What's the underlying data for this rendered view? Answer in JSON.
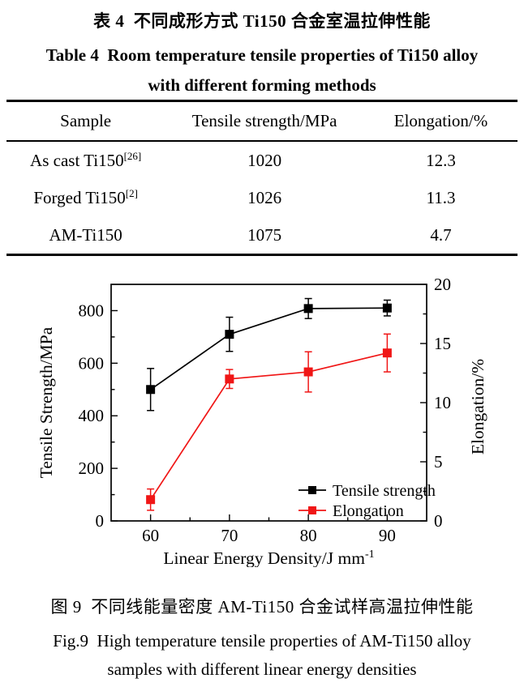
{
  "titles": {
    "table_zh": "表 4  不同成形方式 Ti150 合金室温拉伸性能",
    "table_en_line1": "Table 4  Room temperature tensile properties of Ti150 alloy",
    "table_en_line2": "with different forming methods"
  },
  "table": {
    "headers": [
      "Sample",
      "Tensile strength/MPa",
      "Elongation/%"
    ],
    "rows": [
      {
        "sample": "As cast Ti150",
        "sample_sup": "[26]",
        "tensile_strength": "1020",
        "elongation": "12.3"
      },
      {
        "sample": "Forged Ti150",
        "sample_sup": "[2]",
        "tensile_strength": "1026",
        "elongation": "11.3"
      },
      {
        "sample": "AM-Ti150",
        "sample_sup": "",
        "tensile_strength": "1075",
        "elongation": "4.7"
      }
    ]
  },
  "figure_captions": {
    "caption_zh": "图 9  不同线能量密度 AM-Ti150 合金试样高温拉伸性能",
    "caption_en_line1": "Fig.9  High temperature tensile properties of AM-Ti150 alloy",
    "caption_en_line2": "samples with different linear energy densities"
  },
  "chart_data": {
    "type": "line",
    "x": [
      60,
      70,
      80,
      90
    ],
    "xlabel": "Linear Energy Density/J mm",
    "xlabel_sup": "-1",
    "xlim": [
      55,
      95
    ],
    "x_ticks": [
      60,
      70,
      80,
      90
    ],
    "x_minor_ticks": [
      65,
      75,
      85
    ],
    "left_axis": {
      "label": "Tensile Strength/MPa",
      "lim": [
        0,
        900
      ],
      "ticks": [
        0,
        200,
        400,
        600,
        800
      ],
      "minor_ticks": [
        100,
        300,
        500,
        700
      ]
    },
    "right_axis": {
      "label": "Elongation/%",
      "lim": [
        0,
        20
      ],
      "ticks": [
        0,
        5,
        10,
        15,
        20
      ],
      "minor_ticks": [
        2.5,
        7.5,
        12.5,
        17.5
      ]
    },
    "series": [
      {
        "name": "Tensile strength",
        "axis": "left",
        "color": "#000000",
        "values": [
          500,
          710,
          808,
          810
        ],
        "errors": [
          80,
          65,
          38,
          30
        ]
      },
      {
        "name": "Elongation",
        "axis": "right",
        "color": "#f01616",
        "values": [
          1.8,
          12.0,
          12.6,
          14.2
        ],
        "errors": [
          0.9,
          0.8,
          1.7,
          1.6
        ]
      }
    ],
    "legend_position": "inside-bottom-right",
    "grid": false,
    "marker": "square",
    "error_bars": true
  }
}
